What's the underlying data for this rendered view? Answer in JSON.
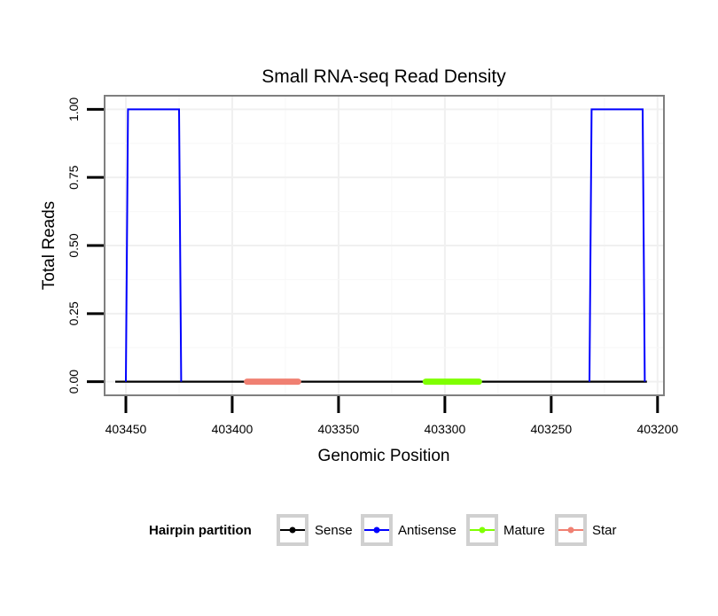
{
  "chart_data": {
    "type": "line",
    "title": "Small RNA-seq Read Density",
    "xlabel": "Genomic Position",
    "ylabel": "Total Reads",
    "x_reversed": true,
    "xlim": [
      403460,
      403197
    ],
    "ylim": [
      -0.05,
      1.05
    ],
    "x_ticks": [
      403450,
      403400,
      403350,
      403300,
      403250,
      403200
    ],
    "x_tick_labels": [
      "403450",
      "403400",
      "403350",
      "403300",
      "403250",
      "403200"
    ],
    "y_ticks": [
      0.0,
      0.25,
      0.5,
      0.75,
      1.0
    ],
    "y_tick_labels": [
      "0.00",
      "0.25",
      "0.50",
      "0.75",
      "1.00"
    ],
    "grid": true,
    "legend_position": "bottom",
    "legend_title": "Hairpin partition",
    "series": [
      {
        "name": "Sense",
        "color": "#000000",
        "width": 2.2,
        "x": [
          403455,
          403205
        ],
        "y": [
          0,
          0
        ]
      },
      {
        "name": "Antisense",
        "color": "#0000ff",
        "width": 2,
        "x": [
          403450,
          403449,
          403425,
          403424
        ],
        "y": [
          0,
          1,
          1,
          0
        ]
      },
      {
        "name": "Antisense",
        "color": "#0000ff",
        "width": 2,
        "legend": false,
        "x": [
          403232,
          403231,
          403207,
          403206
        ],
        "y": [
          0,
          1,
          1,
          0
        ]
      },
      {
        "name": "Mature",
        "color": "#7fff00",
        "width": 7,
        "x": [
          403309,
          403284
        ],
        "y": [
          0,
          0
        ]
      },
      {
        "name": "Star",
        "color": "#f08072",
        "width": 7,
        "x": [
          403393,
          403369
        ],
        "y": [
          0,
          0
        ]
      }
    ],
    "legend_entries": [
      {
        "name": "Sense",
        "color": "#000000"
      },
      {
        "name": "Antisense",
        "color": "#0000ff"
      },
      {
        "name": "Mature",
        "color": "#7fff00"
      },
      {
        "name": "Star",
        "color": "#f08072"
      }
    ]
  }
}
